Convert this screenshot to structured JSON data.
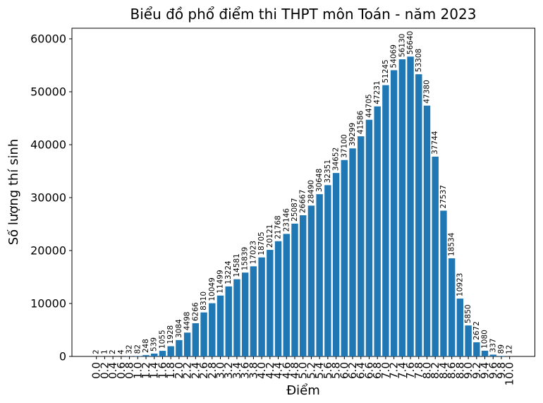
{
  "chart_data": {
    "type": "bar",
    "title": "Biểu đồ phổ điểm thi THPT môn Toán - năm 2023",
    "xlabel": "Điểm",
    "ylabel": "Số lượng thí sinh",
    "bar_color": "#1f77b4",
    "grid": false,
    "legend": null,
    "ylim": [
      0,
      62000
    ],
    "yticks": [
      0,
      10000,
      20000,
      30000,
      40000,
      50000,
      60000
    ],
    "categories": [
      "0.0",
      "0.2",
      "0.4",
      "0.6",
      "0.8",
      "1.0",
      "1.2",
      "1.4",
      "1.6",
      "1.8",
      "2.0",
      "2.2",
      "2.4",
      "2.6",
      "2.8",
      "3.0",
      "3.2",
      "3.4",
      "3.6",
      "3.8",
      "4.0",
      "4.2",
      "4.4",
      "4.6",
      "4.8",
      "5.0",
      "5.2",
      "5.4",
      "5.6",
      "5.8",
      "6.0",
      "6.2",
      "6.4",
      "6.6",
      "6.8",
      "7.0",
      "7.2",
      "7.4",
      "7.6",
      "7.8",
      "8.0",
      "8.2",
      "8.4",
      "8.6",
      "8.8",
      "9.0",
      "9.2",
      "9.4",
      "9.6",
      "9.8",
      "10.0"
    ],
    "values": [
      2,
      1,
      2,
      4,
      32,
      82,
      248,
      539,
      1055,
      1928,
      3084,
      4498,
      6266,
      8310,
      10049,
      11499,
      13224,
      14581,
      15839,
      17023,
      18705,
      20121,
      21768,
      23146,
      25087,
      26667,
      28490,
      30648,
      32351,
      34652,
      37100,
      39299,
      41586,
      44705,
      47231,
      51245,
      54069,
      56130,
      56640,
      53308,
      47380,
      37744,
      27537,
      18534,
      10923,
      5850,
      2672,
      1080,
      337,
      89,
      12
    ]
  }
}
